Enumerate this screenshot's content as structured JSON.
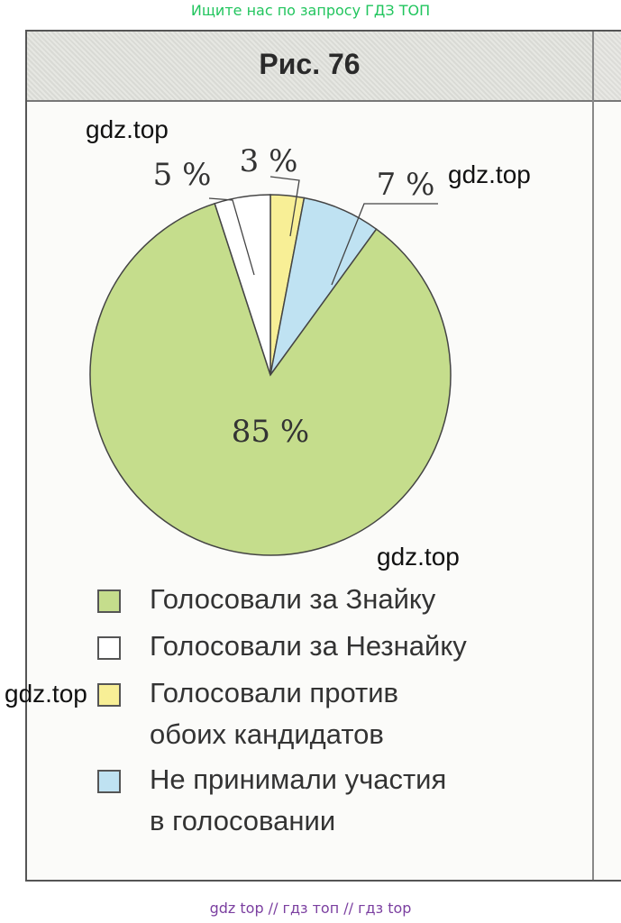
{
  "top_banner": "Ищите нас по запросу ГДЗ ТОП",
  "figure_title": "Рис. 76",
  "watermark": "gdz.top",
  "footer": "gdz top  //  гдз топ  //  гдз top",
  "chart_data": {
    "type": "pie",
    "title": "Рис. 76",
    "slices": [
      {
        "label": "Голосовали за Знайку",
        "value": 85,
        "value_label": "85 %",
        "color": "#c5dd8c"
      },
      {
        "label": "Голосовали за Незнайку",
        "value": 5,
        "value_label": "5 %",
        "color": "#ffffff"
      },
      {
        "label": "Голосовали против обоих кандидатов",
        "value": 3,
        "value_label": "3 %",
        "color": "#f8ef96"
      },
      {
        "label": "Не принимали участия в голосовании",
        "value": 7,
        "value_label": "7 %",
        "color": "#bfe2f2"
      }
    ],
    "legend_lines": [
      [
        "Голосовали за Знайку"
      ],
      [
        "Голосовали за Незнайку"
      ],
      [
        "Голосовали против",
        "обоих кандидатов"
      ],
      [
        "Не принимали участия",
        "в голосовании"
      ]
    ],
    "legend_placement": "bottom"
  }
}
